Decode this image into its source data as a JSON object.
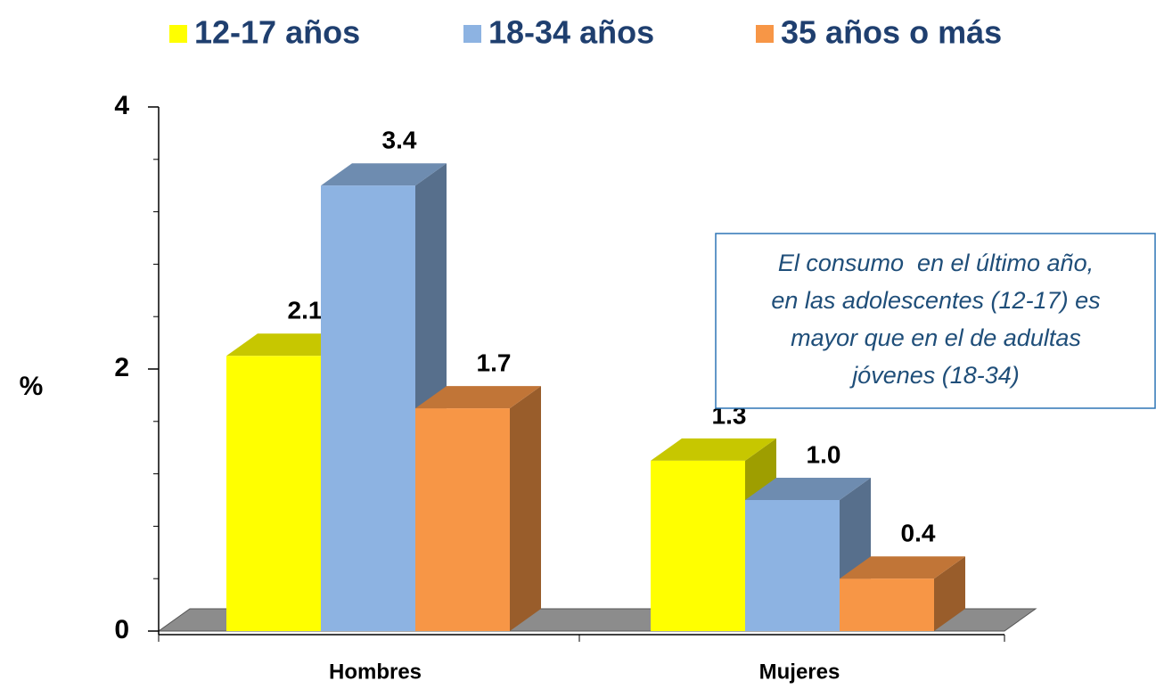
{
  "chart_data": {
    "type": "bar3d",
    "categories": [
      "Hombres",
      "Mujeres"
    ],
    "series": [
      {
        "name": "12-17 años",
        "color": "#ffff00",
        "values": [
          2.1,
          1.3
        ]
      },
      {
        "name": "18-34 años",
        "color": "#8db3e2",
        "values": [
          3.4,
          1.0
        ],
        "value_labels": [
          "3.4",
          "1.0"
        ]
      },
      {
        "name": "35 años o más",
        "color": "#f79646",
        "values": [
          1.7,
          0.4
        ]
      }
    ],
    "ylabel": "%",
    "ylim": [
      0,
      4
    ],
    "yticks": [
      0,
      2,
      4
    ],
    "annotation": [
      "El consumo  en el último año,",
      "en las adolescentes (12-17) es",
      "mayor que en el de adultas",
      "jóvenes (18-34)"
    ]
  }
}
